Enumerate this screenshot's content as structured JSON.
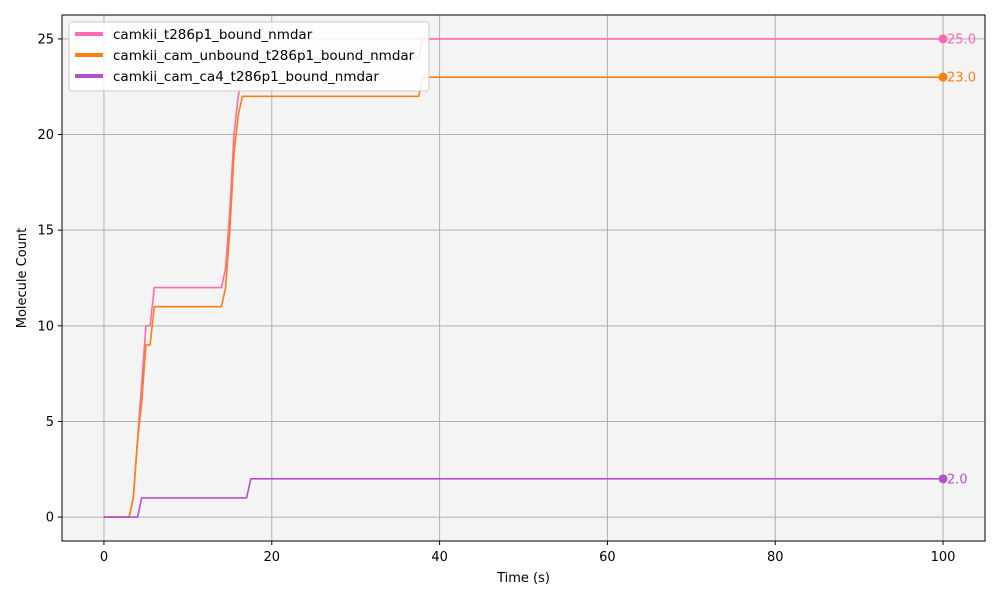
{
  "chart_data": {
    "type": "line",
    "xlabel": "Time (s)",
    "ylabel": "Molecule Count",
    "xlim": [
      -5,
      105
    ],
    "ylim": [
      -1.25,
      26.25
    ],
    "xticks": [
      0,
      20,
      40,
      60,
      80,
      100
    ],
    "yticks": [
      0,
      5,
      10,
      15,
      20,
      25
    ],
    "grid": true,
    "legend_position": "top-left",
    "series": [
      {
        "name": "camkii_t286p1_bound_nmdar",
        "color": "#ff69b4",
        "end_label": "25.0",
        "x": [
          0,
          3,
          3.5,
          4,
          4.5,
          5,
          5.5,
          6,
          14,
          14.5,
          15,
          15.5,
          16,
          16.5,
          17,
          17.5,
          37.5,
          38,
          100
        ],
        "y": [
          0,
          0,
          1,
          4,
          7,
          10,
          10,
          12,
          12,
          13,
          16,
          20,
          22,
          23,
          24,
          24,
          24,
          25,
          25
        ]
      },
      {
        "name": "camkii_cam_unbound_t286p1_bound_nmdar",
        "color": "#ff7f0e",
        "end_label": "23.0",
        "x": [
          0,
          3,
          3.5,
          4,
          4.5,
          5,
          5.5,
          6,
          14,
          14.5,
          15,
          15.5,
          16,
          16.5,
          37,
          37.5,
          38,
          100
        ],
        "y": [
          0,
          0,
          1,
          4,
          6,
          9,
          9,
          11,
          11,
          12,
          15,
          19,
          21,
          22,
          22,
          22,
          23,
          23
        ]
      },
      {
        "name": "camkii_cam_ca4_t286p1_bound_nmdar",
        "color": "#b452cd",
        "end_label": "2.0",
        "x": [
          0,
          4,
          4.5,
          17,
          17.5,
          100
        ],
        "y": [
          0,
          0,
          1,
          1,
          2,
          2
        ]
      }
    ]
  }
}
